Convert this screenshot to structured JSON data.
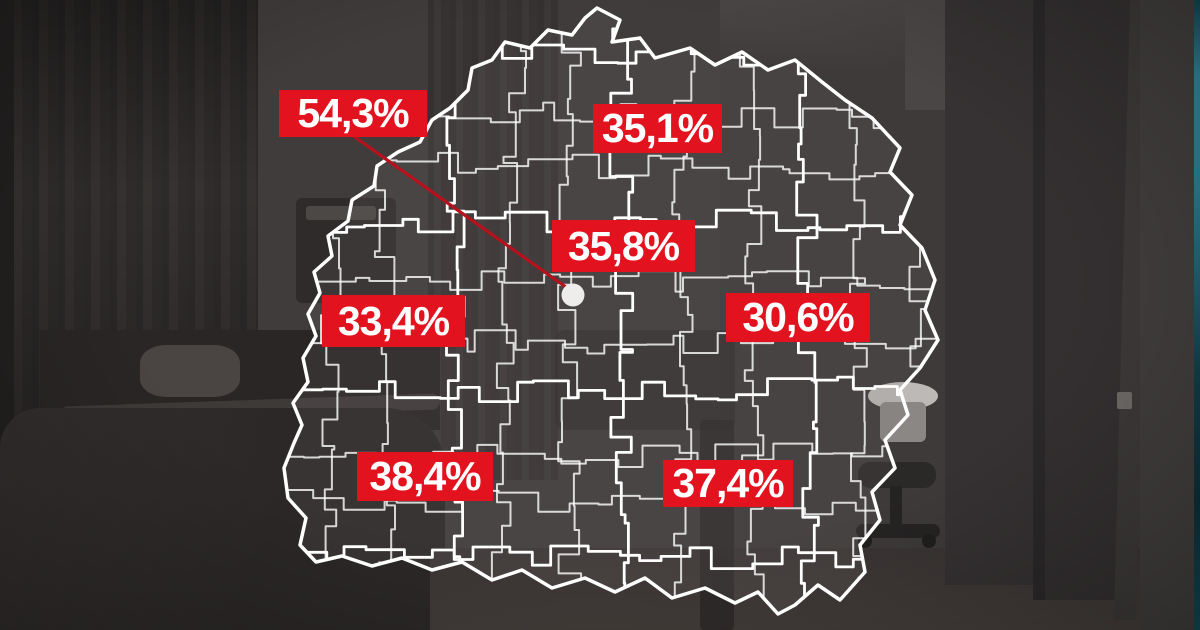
{
  "infographic": {
    "kind": "callout-percentage-map",
    "map_shape": "belarus-district-borders",
    "badges": [
      {
        "id": "callout-city-dot",
        "value": "54,3%"
      },
      {
        "id": "north-region",
        "value": "35,1%"
      },
      {
        "id": "central-region",
        "value": "35,8%"
      },
      {
        "id": "west-region",
        "value": "33,4%"
      },
      {
        "id": "east-region",
        "value": "30,6%"
      },
      {
        "id": "southwest-region",
        "value": "38,4%"
      },
      {
        "id": "southeast-region",
        "value": "37,4%"
      }
    ],
    "marker": {
      "shape": "white-dot"
    },
    "colors": {
      "badge_background": "#e2131f",
      "badge_text": "#ffffff",
      "map_border": "#ffffff",
      "callout_line": "#b5121d",
      "marker_fill": "#efedec",
      "edge_strip": "#2a7f91"
    }
  }
}
